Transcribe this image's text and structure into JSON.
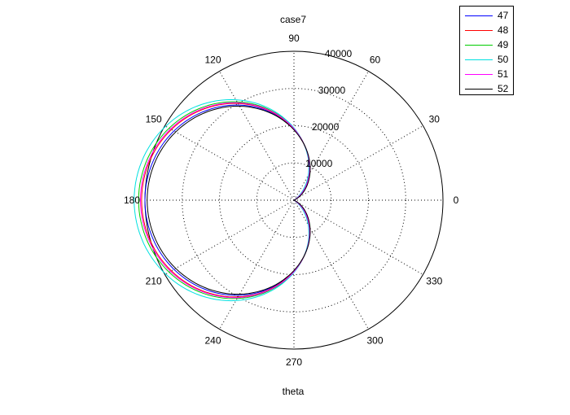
{
  "chart_data": {
    "type": "polar-line",
    "title": "case7",
    "xlabel": "theta",
    "r_max": 40000,
    "r_ticks": [
      10000,
      20000,
      30000,
      40000
    ],
    "angle_ticks_deg": [
      0,
      30,
      60,
      90,
      120,
      150,
      180,
      210,
      240,
      270,
      300,
      330
    ],
    "grid": true,
    "legend_position": "top-right",
    "series": [
      {
        "name": "47",
        "color": "#0000ff",
        "a": 21000,
        "b": 19000
      },
      {
        "name": "48",
        "color": "#ff0000",
        "a": 21800,
        "b": 19100
      },
      {
        "name": "49",
        "color": "#00cc00",
        "a": 22400,
        "b": 19300
      },
      {
        "name": "50",
        "color": "#00e0e0",
        "a": 23500,
        "b": 19400
      },
      {
        "name": "51",
        "color": "#ff00ff",
        "a": 22000,
        "b": 19200
      },
      {
        "name": "52",
        "color": "#000000",
        "a": 20500,
        "b": 18900
      }
    ]
  }
}
